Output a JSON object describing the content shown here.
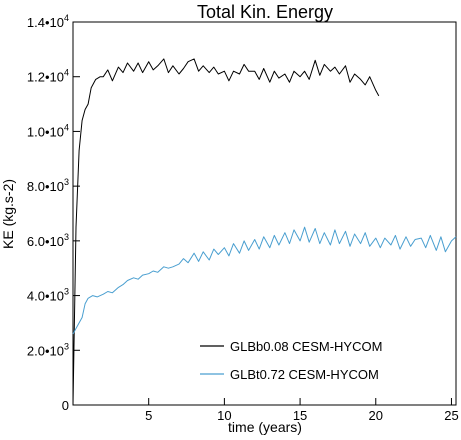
{
  "chart_data": {
    "type": "line",
    "title": "Total Kin. Energy",
    "xlabel": "time (years)",
    "ylabel": "KE (kg.s-2)",
    "xlim": [
      0,
      25.3
    ],
    "ylim": [
      0,
      14000
    ],
    "grid": false,
    "legend_position": "bottom-right",
    "x_ticks": [
      {
        "value": 5,
        "label": "5"
      },
      {
        "value": 10,
        "label": "10"
      },
      {
        "value": 15,
        "label": "15"
      },
      {
        "value": 20,
        "label": "20"
      },
      {
        "value": 25,
        "label": "25"
      }
    ],
    "y_ticks": [
      {
        "value": 0,
        "mantissa": "0",
        "exponent": ""
      },
      {
        "value": 2000,
        "mantissa": "2.0•10",
        "exponent": "3"
      },
      {
        "value": 4000,
        "mantissa": "4.0•10",
        "exponent": "3"
      },
      {
        "value": 6000,
        "mantissa": "6.0•10",
        "exponent": "3"
      },
      {
        "value": 8000,
        "mantissa": "8.0•10",
        "exponent": "3"
      },
      {
        "value": 10000,
        "mantissa": "1.0•10",
        "exponent": "4"
      },
      {
        "value": 12000,
        "mantissa": "1.2•10",
        "exponent": "4"
      },
      {
        "value": 14000,
        "mantissa": "1.4•10",
        "exponent": "4"
      }
    ],
    "series": [
      {
        "name": "GLBb0.08 CESM-HYCOM",
        "color": "#000000",
        "x": [
          0,
          0.2,
          0.4,
          0.6,
          0.8,
          1.0,
          1.2,
          1.5,
          1.8,
          2.0,
          2.3,
          2.6,
          3.0,
          3.3,
          3.6,
          4.0,
          4.3,
          4.6,
          5.0,
          5.3,
          5.6,
          6.0,
          6.3,
          6.6,
          7.0,
          7.3,
          7.6,
          8.0,
          8.3,
          8.6,
          9.0,
          9.3,
          9.6,
          10.0,
          10.3,
          10.6,
          11.0,
          11.3,
          11.6,
          12.0,
          12.3,
          12.6,
          13.0,
          13.3,
          13.6,
          14.0,
          14.3,
          14.6,
          15.0,
          15.3,
          15.6,
          16.0,
          16.3,
          16.6,
          17.0,
          17.3,
          17.6,
          18.0,
          18.3,
          18.6,
          19.0,
          19.3,
          19.6,
          20.0,
          20.2
        ],
        "values": [
          0,
          6500,
          9300,
          10400,
          10800,
          11000,
          11600,
          11900,
          12000,
          12000,
          12250,
          11850,
          12350,
          12150,
          12500,
          12200,
          12500,
          12150,
          12550,
          12250,
          12400,
          12650,
          12150,
          12400,
          12100,
          12300,
          12550,
          12650,
          12200,
          12400,
          12150,
          12350,
          12100,
          12200,
          11850,
          12200,
          12100,
          12450,
          12200,
          12200,
          11900,
          12300,
          11800,
          12200,
          11950,
          12100,
          11800,
          12200,
          12000,
          12200,
          11900,
          12600,
          12050,
          12450,
          12200,
          12350,
          12100,
          12400,
          11800,
          12100,
          11900,
          11700,
          12000,
          11500,
          11300
        ]
      },
      {
        "name": "GLBt0.72 CESM-HYCOM",
        "color": "#4a9fd0",
        "x": [
          0,
          0.3,
          0.6,
          0.8,
          1.0,
          1.3,
          1.6,
          2.0,
          2.3,
          2.6,
          3.0,
          3.3,
          3.6,
          4.0,
          4.3,
          4.6,
          5.0,
          5.3,
          5.6,
          6.0,
          6.3,
          6.6,
          7.0,
          7.3,
          7.6,
          8.0,
          8.3,
          8.6,
          9.0,
          9.3,
          9.6,
          10.0,
          10.3,
          10.6,
          11.0,
          11.3,
          11.6,
          12.0,
          12.3,
          12.6,
          13.0,
          13.3,
          13.6,
          14.0,
          14.3,
          14.6,
          15.0,
          15.3,
          15.6,
          16.0,
          16.3,
          16.6,
          17.0,
          17.3,
          17.6,
          18.0,
          18.3,
          18.6,
          19.0,
          19.3,
          19.6,
          20.0,
          20.3,
          20.6,
          21.0,
          21.3,
          21.6,
          22.0,
          22.3,
          22.6,
          23.0,
          23.3,
          23.6,
          24.0,
          24.3,
          24.6,
          25.0,
          25.3
        ],
        "values": [
          2600,
          2900,
          3200,
          3700,
          3900,
          4000,
          3950,
          4050,
          4150,
          4100,
          4300,
          4400,
          4550,
          4650,
          4600,
          4750,
          4800,
          4900,
          4850,
          5050,
          5000,
          5050,
          5150,
          5350,
          5200,
          5550,
          5250,
          5600,
          5300,
          5700,
          5500,
          5750,
          5450,
          5900,
          5550,
          6000,
          5650,
          6050,
          5700,
          6150,
          5750,
          6200,
          5850,
          6300,
          5900,
          6400,
          6000,
          6500,
          5950,
          6450,
          5900,
          6300,
          5850,
          6400,
          5900,
          6350,
          5800,
          6250,
          5900,
          6300,
          5800,
          6100,
          5750,
          6100,
          5850,
          6200,
          5700,
          6150,
          5800,
          6050,
          6100,
          5750,
          6200,
          5650,
          6150,
          5600,
          6000,
          6150
        ]
      }
    ]
  }
}
